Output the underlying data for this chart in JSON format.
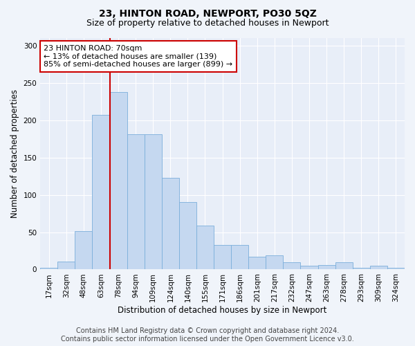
{
  "title": "23, HINTON ROAD, NEWPORT, PO30 5QZ",
  "subtitle": "Size of property relative to detached houses in Newport",
  "xlabel": "Distribution of detached houses by size in Newport",
  "ylabel": "Number of detached properties",
  "categories": [
    "17sqm",
    "32sqm",
    "48sqm",
    "63sqm",
    "78sqm",
    "94sqm",
    "109sqm",
    "124sqm",
    "140sqm",
    "155sqm",
    "171sqm",
    "186sqm",
    "201sqm",
    "217sqm",
    "232sqm",
    "247sqm",
    "263sqm",
    "278sqm",
    "293sqm",
    "309sqm",
    "324sqm"
  ],
  "values": [
    2,
    11,
    51,
    207,
    238,
    181,
    181,
    123,
    90,
    59,
    33,
    33,
    17,
    19,
    10,
    5,
    6,
    10,
    2,
    5,
    2
  ],
  "bar_color": "#c5d8f0",
  "bar_edge_color": "#7aaedb",
  "vline_color": "#cc0000",
  "annotation_text": "23 HINTON ROAD: 70sqm\n← 13% of detached houses are smaller (139)\n85% of semi-detached houses are larger (899) →",
  "annotation_box_color": "#ffffff",
  "annotation_box_edge_color": "#cc0000",
  "footer_line1": "Contains HM Land Registry data © Crown copyright and database right 2024.",
  "footer_line2": "Contains public sector information licensed under the Open Government Licence v3.0.",
  "ylim": [
    0,
    310
  ],
  "background_color": "#f0f4fa",
  "plot_bg_color": "#e8eef8",
  "grid_color": "#ffffff",
  "title_fontsize": 10,
  "subtitle_fontsize": 9,
  "axis_label_fontsize": 8.5,
  "tick_fontsize": 7.5,
  "footer_fontsize": 7,
  "annotation_fontsize": 8
}
